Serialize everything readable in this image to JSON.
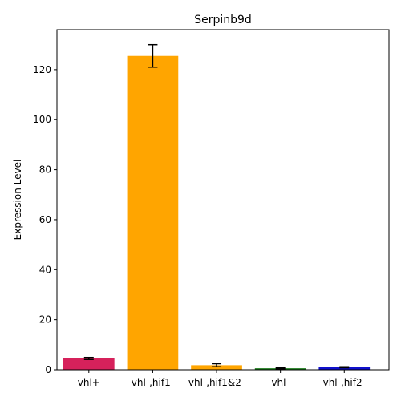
{
  "chart_data": {
    "type": "bar",
    "title": "Serpinb9d",
    "xlabel": "",
    "ylabel": "Expression Level",
    "categories": [
      "vhl+",
      "vhl-,hif1-",
      "vhl-,hif1&2-",
      "vhl-",
      "vhl-,hif2-"
    ],
    "values": [
      4.5,
      125.5,
      1.8,
      0.6,
      1.0
    ],
    "errors": [
      0.4,
      4.5,
      0.6,
      0.2,
      0.2
    ],
    "colors": [
      "#d6215b",
      "#ffa500",
      "#ffa500",
      "#1a7a1a",
      "#1010cc"
    ],
    "ylim": [
      0,
      136
    ],
    "yticks": [
      0,
      20,
      40,
      60,
      80,
      100,
      120
    ],
    "grid": false
  }
}
